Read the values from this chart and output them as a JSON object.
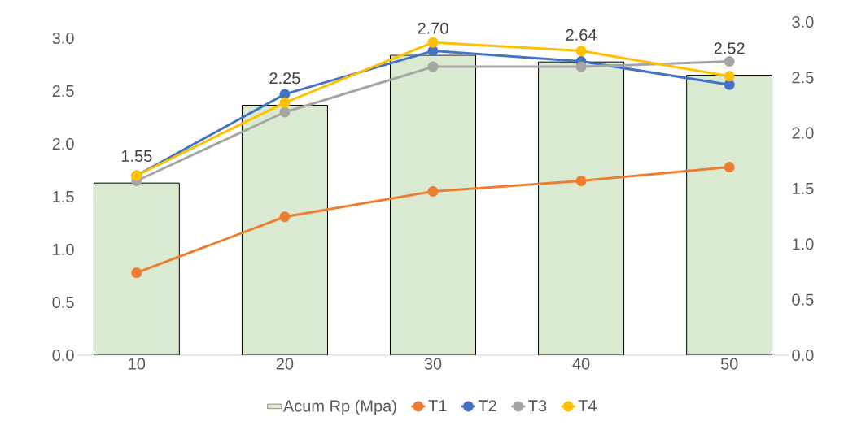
{
  "chart_data": {
    "type": "line",
    "categories": [
      "10",
      "20",
      "30",
      "40",
      "50"
    ],
    "series": [
      {
        "name": "Acum Rp (Mpa)",
        "type": "bar",
        "axis": "y2",
        "color": "#d9ead0",
        "values": [
          1.55,
          2.25,
          2.7,
          2.64,
          2.52
        ],
        "value_labels": [
          "1.55",
          "2.25",
          "2.70",
          "2.64",
          "2.52"
        ]
      },
      {
        "name": "T1",
        "color": "#ed7d31",
        "values": [
          0.78,
          1.31,
          1.55,
          1.65,
          1.78
        ]
      },
      {
        "name": "T2",
        "color": "#4472c4",
        "values": [
          1.7,
          2.47,
          2.88,
          2.78,
          2.56
        ]
      },
      {
        "name": "T3",
        "color": "#a5a5a5",
        "values": [
          1.65,
          2.3,
          2.73,
          2.73,
          2.78
        ]
      },
      {
        "name": "T4",
        "color": "#ffc000",
        "values": [
          1.7,
          2.39,
          2.96,
          2.88,
          2.64
        ]
      }
    ],
    "ylim": [
      0,
      3.0
    ],
    "yticks": [
      {
        "value": 0,
        "label": "0.0"
      },
      {
        "value": 0.5,
        "label": "0.5"
      },
      {
        "value": 1,
        "label": "1.0"
      },
      {
        "value": 1.5,
        "label": "1.5"
      },
      {
        "value": 2,
        "label": "2.0"
      },
      {
        "value": 2.5,
        "label": "2.5"
      },
      {
        "value": 3,
        "label": "3.0"
      }
    ],
    "y2lim": [
      0,
      3.0
    ],
    "y2ticks": [
      {
        "value": 0,
        "label": "0.0"
      },
      {
        "value": 0.5,
        "label": "0.5"
      },
      {
        "value": 1,
        "label": "1.0"
      },
      {
        "value": 1.5,
        "label": "1.5"
      },
      {
        "value": 2,
        "label": "2.0"
      },
      {
        "value": 2.5,
        "label": "2.5"
      },
      {
        "value": 3,
        "label": "3.0"
      }
    ],
    "legend": "bottom",
    "marker": "circle",
    "line_style": "solid",
    "grid": false
  }
}
